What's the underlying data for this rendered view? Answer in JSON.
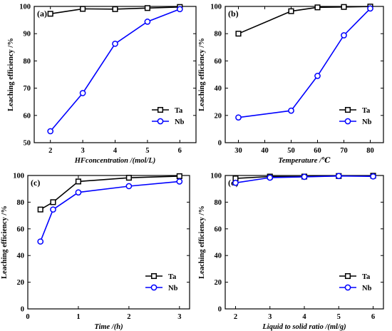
{
  "chart_data": [
    {
      "type": "line",
      "panel_label": "(a)",
      "xlabel": "HFconcentration /(mol/L)",
      "ylabel": "Leaching efficiency /%",
      "xlim": [
        1.5,
        6.5
      ],
      "ylim": [
        50,
        100
      ],
      "xticks": [
        2,
        3,
        4,
        5,
        6
      ],
      "yticks": [
        50,
        60,
        70,
        80,
        90,
        100
      ],
      "grid": false,
      "legend_position": "bottom-right",
      "series": [
        {
          "name": "Ta",
          "color": "#000000",
          "marker": "square",
          "x": [
            2,
            3,
            4,
            5,
            6
          ],
          "y": [
            97.3,
            99.1,
            99.0,
            99.4,
            99.8
          ]
        },
        {
          "name": "Nb",
          "color": "#0000ff",
          "marker": "circle",
          "x": [
            2,
            3,
            4,
            5,
            6
          ],
          "y": [
            54.2,
            68.2,
            86.3,
            94.4,
            99.0
          ]
        }
      ]
    },
    {
      "type": "line",
      "panel_label": "(b)",
      "xlabel": "Temperature /℃",
      "ylabel": "Leaching efficiency /%",
      "xlim": [
        25,
        85
      ],
      "ylim": [
        0,
        100
      ],
      "xticks": [
        30,
        40,
        50,
        60,
        70,
        80
      ],
      "yticks": [
        0,
        20,
        40,
        60,
        80,
        100
      ],
      "grid": false,
      "legend_position": "bottom-right",
      "series": [
        {
          "name": "Ta",
          "color": "#000000",
          "marker": "square",
          "x": [
            30,
            50,
            60,
            70,
            80
          ],
          "y": [
            80.0,
            96.5,
            99.3,
            99.6,
            99.9
          ]
        },
        {
          "name": "Nb",
          "color": "#0000ff",
          "marker": "circle",
          "x": [
            30,
            50,
            60,
            70,
            80
          ],
          "y": [
            18.5,
            23.5,
            49.0,
            78.8,
            98.5
          ]
        }
      ]
    },
    {
      "type": "line",
      "panel_label": "(c)",
      "xlabel": "Time /(h)",
      "ylabel": "Leaching efficiency /%",
      "xlim": [
        0,
        3.2
      ],
      "ylim": [
        0,
        100
      ],
      "xticks": [
        0,
        1,
        2,
        3
      ],
      "yticks": [
        0,
        20,
        40,
        60,
        80,
        100
      ],
      "grid": false,
      "legend_position": "bottom-right",
      "series": [
        {
          "name": "Ta",
          "color": "#000000",
          "marker": "square",
          "x": [
            0.25,
            0.5,
            1,
            2,
            3
          ],
          "y": [
            74.5,
            80.0,
            95.5,
            98.3,
            99.5
          ]
        },
        {
          "name": "Nb",
          "color": "#0000ff",
          "marker": "circle",
          "x": [
            0.25,
            0.5,
            1,
            2,
            3
          ],
          "y": [
            50.5,
            74.5,
            87.3,
            92.0,
            95.5
          ]
        }
      ]
    },
    {
      "type": "line",
      "panel_label": "(d)",
      "xlabel": "Liquid to solid ratio /(ml/g)",
      "ylabel": "Leaching efficiency /%",
      "xlim": [
        1.7,
        6.3
      ],
      "ylim": [
        0,
        100
      ],
      "xticks": [
        2,
        3,
        4,
        5,
        6
      ],
      "yticks": [
        0,
        20,
        40,
        60,
        80,
        100
      ],
      "grid": false,
      "legend_position": "bottom-right",
      "series": [
        {
          "name": "Ta",
          "color": "#000000",
          "marker": "square",
          "x": [
            2,
            3,
            4,
            5,
            6
          ],
          "y": [
            97.8,
            99.2,
            99.2,
            99.6,
            99.8
          ]
        },
        {
          "name": "Nb",
          "color": "#0000ff",
          "marker": "circle",
          "x": [
            2,
            3,
            4,
            5,
            6
          ],
          "y": [
            94.5,
            98.4,
            99.0,
            99.6,
            99.3
          ]
        }
      ]
    }
  ]
}
